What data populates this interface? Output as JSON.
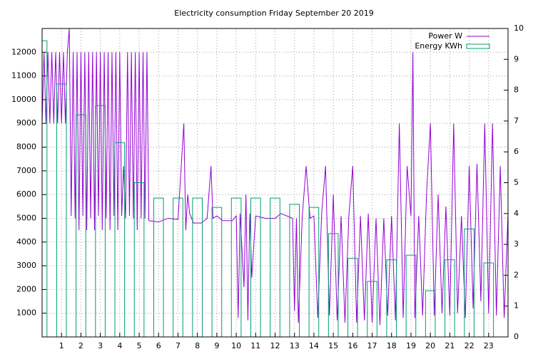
{
  "chart_data": {
    "type": "bar_line",
    "title": "Electricity consumption Friday September 20 2019",
    "xlim": [
      0,
      24
    ],
    "xticks": [
      1,
      2,
      3,
      4,
      5,
      6,
      7,
      8,
      9,
      10,
      11,
      12,
      13,
      14,
      15,
      16,
      17,
      18,
      19,
      20,
      21,
      22,
      23
    ],
    "ylim": [
      0,
      13000
    ],
    "yticks": [
      1000,
      2000,
      3000,
      4000,
      5000,
      6000,
      7000,
      8000,
      9000,
      10000,
      11000,
      12000
    ],
    "y2lim": [
      0,
      10
    ],
    "y2ticks": [
      0,
      1,
      2,
      3,
      4,
      5,
      6,
      7,
      8,
      9,
      10
    ],
    "grid": true,
    "legend": "top-right",
    "series": [
      {
        "name": "Power W",
        "color": "#9400d3",
        "type": "line",
        "x": [
          0.0,
          0.1,
          0.2,
          0.3,
          0.4,
          0.5,
          0.6,
          0.7,
          0.8,
          0.9,
          1.0,
          1.1,
          1.2,
          1.3,
          1.4,
          1.5,
          1.6,
          1.7,
          1.8,
          1.9,
          2.0,
          2.1,
          2.2,
          2.3,
          2.4,
          2.5,
          2.6,
          2.7,
          2.8,
          2.9,
          3.0,
          3.1,
          3.2,
          3.3,
          3.4,
          3.5,
          3.6,
          3.7,
          3.8,
          3.9,
          4.0,
          4.1,
          4.2,
          4.3,
          4.4,
          4.5,
          4.6,
          4.7,
          4.8,
          4.9,
          5.0,
          5.1,
          5.2,
          5.3,
          5.4,
          5.5,
          6.0,
          6.5,
          7.0,
          7.3,
          7.4,
          7.5,
          7.6,
          7.8,
          8.2,
          8.5,
          8.7,
          8.8,
          9.0,
          9.3,
          9.8,
          10.0,
          10.1,
          10.2,
          10.4,
          10.5,
          10.6,
          10.7,
          10.8,
          11.0,
          11.5,
          12.0,
          12.3,
          12.6,
          12.9,
          13.0,
          13.1,
          13.2,
          13.4,
          13.6,
          13.8,
          14.0,
          14.2,
          14.4,
          14.6,
          14.8,
          15.0,
          15.2,
          15.4,
          15.6,
          15.8,
          16.0,
          16.2,
          16.4,
          16.6,
          16.8,
          17.0,
          17.2,
          17.4,
          17.6,
          17.8,
          18.0,
          18.2,
          18.4,
          18.6,
          18.8,
          19.0,
          19.1,
          19.2,
          19.4,
          19.6,
          19.8,
          20.0,
          20.2,
          20.4,
          20.6,
          20.8,
          21.0,
          21.2,
          21.4,
          21.6,
          21.8,
          22.0,
          22.2,
          22.4,
          22.6,
          22.8,
          23.0,
          23.2,
          23.4,
          23.6,
          23.8,
          24.0
        ],
        "values": [
          9000,
          12000,
          9000,
          12000,
          9000,
          12000,
          9000,
          12000,
          9000,
          12000,
          9000,
          12000,
          9000,
          12000,
          13000,
          5100,
          12000,
          5000,
          12000,
          4500,
          12000,
          5100,
          12000,
          4500,
          12000,
          5000,
          12000,
          4500,
          12000,
          5100,
          12000,
          4500,
          12000,
          5000,
          12000,
          4500,
          12000,
          5100,
          12000,
          4500,
          12000,
          5100,
          7200,
          5000,
          12000,
          5100,
          12000,
          5000,
          12000,
          4500,
          12000,
          5000,
          12000,
          5000,
          12000,
          4900,
          4850,
          5000,
          4950,
          9000,
          4500,
          6000,
          5200,
          4800,
          4800,
          5000,
          7200,
          5000,
          5100,
          4900,
          4900,
          5100,
          800,
          5200,
          2100,
          6000,
          700,
          5200,
          2500,
          5100,
          5000,
          5000,
          5200,
          5100,
          5000,
          1100,
          5000,
          600,
          5100,
          7200,
          5000,
          5100,
          800,
          5200,
          7200,
          900,
          6000,
          700,
          5100,
          600,
          5100,
          7200,
          600,
          5100,
          700,
          5200,
          600,
          5000,
          500,
          5000,
          900,
          5100,
          700,
          9000,
          800,
          7200,
          5100,
          12000,
          800,
          5100,
          900,
          6000,
          9000,
          900,
          6000,
          1000,
          5500,
          900,
          9000,
          1000,
          5100,
          800,
          7200,
          1200,
          7300,
          1500,
          9000,
          1000,
          9000,
          900,
          7200,
          800,
          5200
        ]
      },
      {
        "name": "Energy KWh",
        "color": "#009e73",
        "type": "bar",
        "axis": "y2",
        "x": [
          0,
          1,
          2,
          3,
          4,
          5,
          6,
          7,
          8,
          9,
          10,
          11,
          12,
          13,
          14,
          15,
          16,
          17,
          18,
          19,
          20,
          21,
          22,
          23
        ],
        "values": [
          9.6,
          8.2,
          7.2,
          7.5,
          6.3,
          5.0,
          4.5,
          4.5,
          4.5,
          4.2,
          4.5,
          4.5,
          4.5,
          4.3,
          4.2,
          3.35,
          2.55,
          1.8,
          2.5,
          2.65,
          1.5,
          2.5,
          3.5,
          2.4
        ]
      }
    ]
  }
}
